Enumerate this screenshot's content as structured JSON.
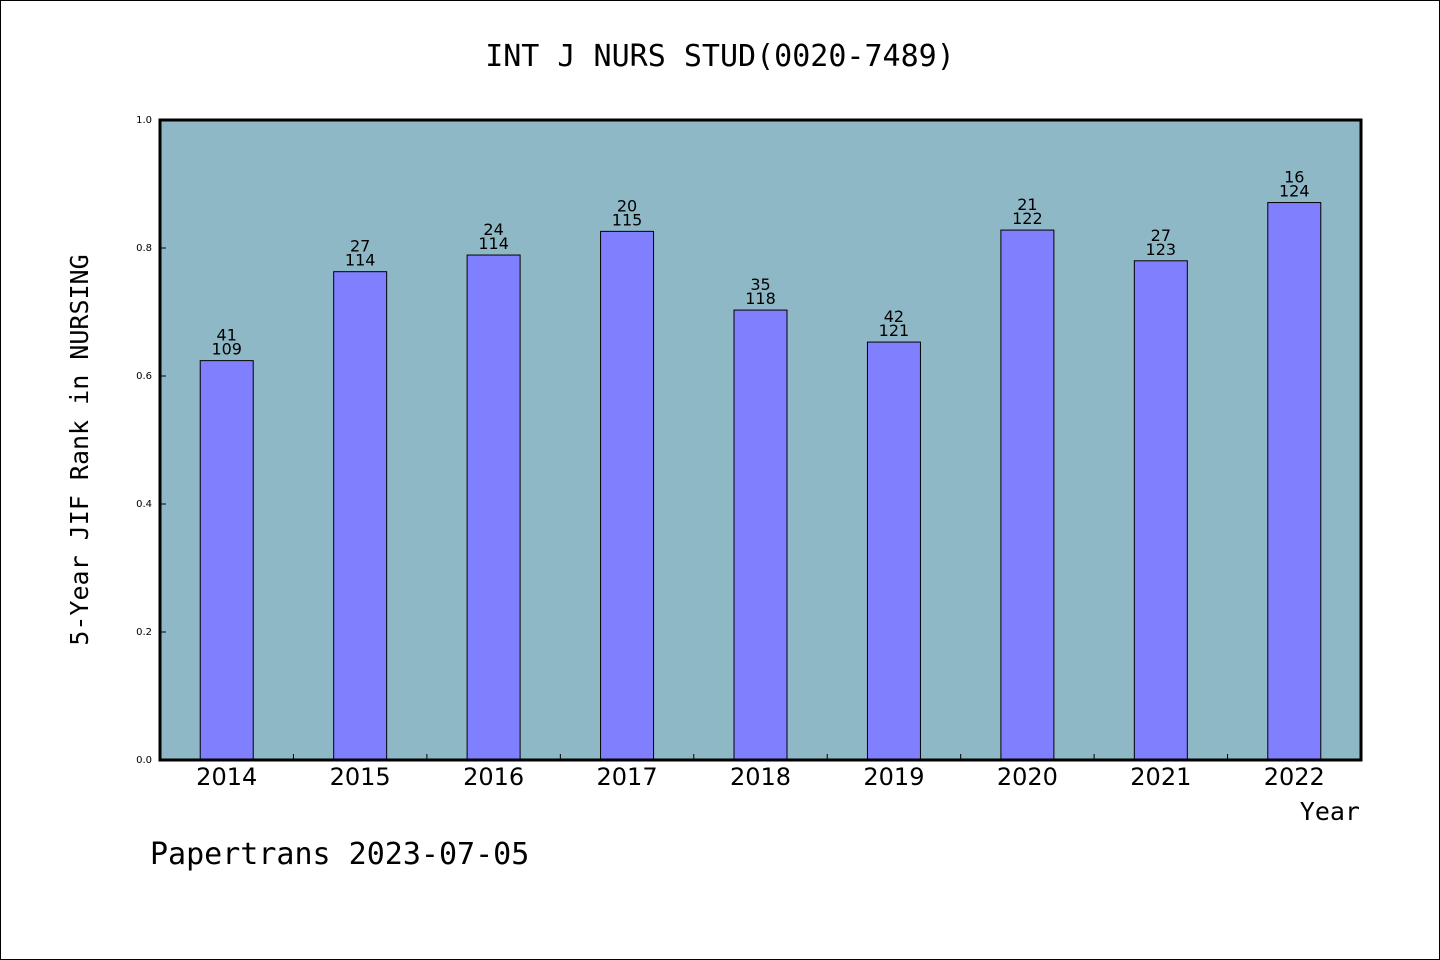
{
  "chart_data": {
    "type": "bar",
    "title": "INT J NURS STUD(0020-7489)",
    "xlabel": "Year",
    "ylabel": "5-Year JIF Rank in NURSING",
    "ylim": [
      0,
      1.0
    ],
    "yticks": [
      "0.0",
      "0.2",
      "0.4",
      "0.6",
      "0.8",
      "1.0"
    ],
    "categories": [
      "2014",
      "2015",
      "2016",
      "2017",
      "2018",
      "2019",
      "2020",
      "2021",
      "2022"
    ],
    "values": [
      0.624,
      0.763,
      0.789,
      0.826,
      0.703,
      0.653,
      0.828,
      0.78,
      0.871
    ],
    "rank_labels": [
      "41",
      "27",
      "24",
      "20",
      "35",
      "42",
      "21",
      "27",
      "16"
    ],
    "total_labels": [
      "109",
      "114",
      "114",
      "115",
      "118",
      "121",
      "122",
      "123",
      "124"
    ],
    "grid": false,
    "colors": {
      "plot_background": "#8fb8c7",
      "bar_fill": "#8080ff",
      "bar_stroke": "#000000"
    }
  },
  "footer": {
    "text": "Papertrans 2023-07-05"
  }
}
